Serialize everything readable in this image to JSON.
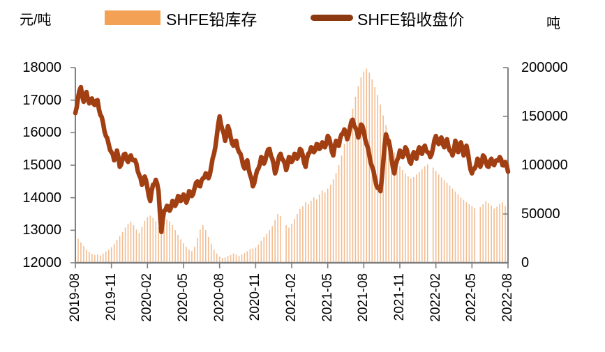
{
  "chart": {
    "left_unit": "元/吨",
    "right_unit": "吨",
    "legend": [
      {
        "label": "SHFE铅库存",
        "swatch_color": "#F2A155"
      },
      {
        "label": "SHFE铅收盘价",
        "swatch_color": "#8C3810"
      }
    ]
  },
  "chart_data": {
    "type": "bar+line",
    "title": "",
    "x_tick_labels": [
      "2019-08",
      "2019-11",
      "2020-02",
      "2020-05",
      "2020-08",
      "2020-11",
      "2021-02",
      "2021-05",
      "2021-08",
      "2021-11",
      "2022-02",
      "2022-05",
      "2022-08"
    ],
    "left_axis": {
      "unit": "元/吨",
      "min": 12000,
      "max": 18000,
      "step": 1000,
      "tick_labels": [
        "18000",
        "17000",
        "16000",
        "15000",
        "14000",
        "13000",
        "12000"
      ]
    },
    "right_axis": {
      "unit": "吨",
      "min": 0,
      "max": 200000,
      "step": 50000,
      "tick_labels": [
        "200000",
        "150000",
        "100000",
        "50000",
        "0"
      ]
    },
    "layout": {
      "legend_position": "top",
      "grid": false,
      "bar_color": "#F2BD92",
      "line_color": "#A23F12",
      "axis_color": "#7F7F7F"
    },
    "series": [
      {
        "name": "SHFE铅库存",
        "type": "bar",
        "axis": "right",
        "values": [
          28000,
          24500,
          21000,
          17000,
          13500,
          11000,
          9000,
          8000,
          8500,
          7500,
          9500,
          11500,
          13500,
          16000,
          19500,
          23500,
          27500,
          31500,
          36000,
          40000,
          42000,
          38500,
          34000,
          30500,
          36500,
          43000,
          47000,
          48500,
          46000,
          42500,
          36500,
          31500,
          41000,
          44500,
          42500,
          38500,
          33500,
          28500,
          24000,
          20000,
          16500,
          13500,
          12000,
          16500,
          25500,
          34000,
          38500,
          33500,
          26500,
          19500,
          13500,
          9500,
          6500,
          5000,
          5500,
          7000,
          8000,
          9500,
          8500,
          7000,
          8500,
          10000,
          12000,
          14000,
          14500,
          15500,
          18500,
          22500,
          26500,
          29500,
          33500,
          37500,
          44000,
          50000,
          48000,
          0,
          38500,
          36000,
          40000,
          45000,
          50000,
          55000,
          58000,
          62000,
          60000,
          63500,
          67000,
          65000,
          70000,
          74000,
          72000,
          76000,
          80000,
          85500,
          92000,
          100000,
          110000,
          122000,
          135000,
          148000,
          158000,
          170000,
          181000,
          190000,
          196000,
          199000,
          195000,
          188000,
          180000,
          172000,
          162000,
          151000,
          141000,
          131000,
          121000,
          113000,
          106000,
          99000,
          95000,
          91500,
          88500,
          86500,
          88000,
          90500,
          93000,
          96000,
          99000,
          101000,
          0,
          97500,
          94000,
          90500,
          87500,
          84500,
          82000,
          79000,
          76000,
          73000,
          70000,
          67000,
          64500,
          62000,
          60000,
          58000,
          56000,
          0,
          57000,
          60000,
          63000,
          61000,
          58500,
          55500,
          57500,
          60500,
          62000,
          58000,
          54000
        ]
      },
      {
        "name": "SHFE铅收盘价",
        "type": "line",
        "axis": "left",
        "values": [
          16600,
          17100,
          17400,
          16950,
          17250,
          16900,
          17050,
          16850,
          17000,
          16550,
          16300,
          15900,
          15650,
          15400,
          15150,
          15450,
          14950,
          15200,
          15350,
          15100,
          15300,
          15150,
          15050,
          14700,
          14400,
          14650,
          14300,
          13900,
          14400,
          14550,
          14200,
          12950,
          13600,
          13750,
          13600,
          13900,
          13750,
          14050,
          13900,
          14100,
          13850,
          14200,
          14050,
          14300,
          14500,
          14350,
          14600,
          14750,
          14600,
          14950,
          15350,
          15900,
          16500,
          16100,
          15750,
          16200,
          15850,
          15600,
          15750,
          15400,
          15200,
          14900,
          15150,
          14700,
          14350,
          14650,
          14900,
          15250,
          15050,
          15350,
          15500,
          15200,
          14750,
          15100,
          15350,
          15150,
          14850,
          15250,
          15100,
          15350,
          15200,
          15500,
          15300,
          14950,
          15350,
          15550,
          15400,
          15650,
          15500,
          15700,
          15550,
          15900,
          15650,
          15300,
          15750,
          15600,
          15950,
          16100,
          15800,
          16150,
          16400,
          16150,
          15850,
          16250,
          16050,
          15650,
          15300,
          14950,
          14600,
          14300,
          14200,
          15100,
          15950,
          15750,
          15200,
          14750,
          15150,
          15450,
          15250,
          15550,
          15300,
          15050,
          15400,
          15200,
          15550,
          15350,
          15600,
          15400,
          15250,
          15550,
          15900,
          15650,
          15850,
          15550,
          15800,
          15450,
          15300,
          15750,
          15400,
          15700,
          15300,
          15600,
          15100,
          14750,
          14900,
          15200,
          14950,
          15300,
          15100,
          14950,
          15200,
          15000,
          15150,
          15250,
          15000,
          15100,
          14800
        ]
      }
    ]
  }
}
